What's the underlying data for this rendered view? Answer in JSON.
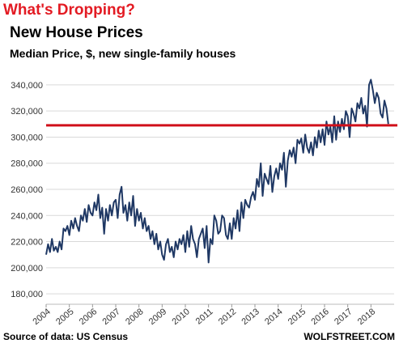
{
  "chart_data": {
    "type": "line",
    "title": "What's Dropping?",
    "subtitle": "New House Prices",
    "y_label": "Median Price, $, new single-family houses",
    "source": "Source of data: US Census",
    "credit": "WOLFSTREET.COM",
    "xlim": [
      2004,
      2019
    ],
    "xticks": [
      2004,
      2005,
      2006,
      2007,
      2008,
      2009,
      2010,
      2011,
      2012,
      2013,
      2014,
      2015,
      2016,
      2017,
      2018
    ],
    "ylim": [
      172000,
      348000
    ],
    "yticks": [
      {
        "value": 180000,
        "label": "180,000"
      },
      {
        "value": 200000,
        "label": "200,000"
      },
      {
        "value": 220000,
        "label": "220,000"
      },
      {
        "value": 240000,
        "label": "240,000"
      },
      {
        "value": 260000,
        "label": "260,000"
      },
      {
        "value": 280000,
        "label": "280,000"
      },
      {
        "value": 300000,
        "label": "300,000"
      },
      {
        "value": 320000,
        "label": "320,000"
      },
      {
        "value": 340000,
        "label": "340,000"
      }
    ],
    "grid": true,
    "reference_line": {
      "value": 309000,
      "color": "#d0101a"
    },
    "x": [
      2004,
      2004.083,
      2004.167,
      2004.25,
      2004.333,
      2004.417,
      2004.5,
      2004.583,
      2004.667,
      2004.75,
      2004.833,
      2004.917,
      2005,
      2005.083,
      2005.167,
      2005.25,
      2005.333,
      2005.417,
      2005.5,
      2005.583,
      2005.667,
      2005.75,
      2005.833,
      2005.917,
      2006,
      2006.083,
      2006.167,
      2006.25,
      2006.333,
      2006.417,
      2006.5,
      2006.583,
      2006.667,
      2006.75,
      2006.833,
      2006.917,
      2007,
      2007.083,
      2007.167,
      2007.25,
      2007.333,
      2007.417,
      2007.5,
      2007.583,
      2007.667,
      2007.75,
      2007.833,
      2007.917,
      2008,
      2008.083,
      2008.167,
      2008.25,
      2008.333,
      2008.417,
      2008.5,
      2008.583,
      2008.667,
      2008.75,
      2008.833,
      2008.917,
      2009,
      2009.083,
      2009.167,
      2009.25,
      2009.333,
      2009.417,
      2009.5,
      2009.583,
      2009.667,
      2009.75,
      2009.833,
      2009.917,
      2010,
      2010.083,
      2010.167,
      2010.25,
      2010.333,
      2010.417,
      2010.5,
      2010.583,
      2010.667,
      2010.75,
      2010.833,
      2010.917,
      2011,
      2011.083,
      2011.167,
      2011.25,
      2011.333,
      2011.417,
      2011.5,
      2011.583,
      2011.667,
      2011.75,
      2011.833,
      2011.917,
      2012,
      2012.083,
      2012.167,
      2012.25,
      2012.333,
      2012.417,
      2012.5,
      2012.583,
      2012.667,
      2012.75,
      2012.833,
      2012.917,
      2013,
      2013.083,
      2013.167,
      2013.25,
      2013.333,
      2013.417,
      2013.5,
      2013.583,
      2013.667,
      2013.75,
      2013.833,
      2013.917,
      2014,
      2014.083,
      2014.167,
      2014.25,
      2014.333,
      2014.417,
      2014.5,
      2014.583,
      2014.667,
      2014.75,
      2014.833,
      2014.917,
      2015,
      2015.083,
      2015.167,
      2015.25,
      2015.333,
      2015.417,
      2015.5,
      2015.583,
      2015.667,
      2015.75,
      2015.833,
      2015.917,
      2016,
      2016.083,
      2016.167,
      2016.25,
      2016.333,
      2016.417,
      2016.5,
      2016.583,
      2016.667,
      2016.75,
      2016.833,
      2016.917,
      2017,
      2017.083,
      2017.167,
      2017.25,
      2017.333,
      2017.417,
      2017.5,
      2017.583,
      2017.667,
      2017.75,
      2017.833,
      2017.917,
      2018,
      2018.083,
      2018.167,
      2018.25,
      2018.333,
      2018.417,
      2018.5,
      2018.583,
      2018.667,
      2018.75
    ],
    "series": [
      {
        "color": "#1f3864",
        "values": [
          210000,
          218000,
          212000,
          222000,
          213000,
          216000,
          212000,
          220000,
          214000,
          230000,
          228000,
          232000,
          225000,
          236000,
          230000,
          238000,
          232000,
          228000,
          240000,
          236000,
          245000,
          235000,
          248000,
          242000,
          240000,
          250000,
          244000,
          256000,
          238000,
          246000,
          226000,
          245000,
          236000,
          248000,
          240000,
          250000,
          252000,
          238000,
          256000,
          262000,
          242000,
          248000,
          236000,
          250000,
          240000,
          255000,
          232000,
          245000,
          236000,
          242000,
          230000,
          238000,
          228000,
          232000,
          222000,
          228000,
          218000,
          226000,
          214000,
          220000,
          210000,
          206000,
          218000,
          222000,
          212000,
          216000,
          208000,
          220000,
          214000,
          222000,
          218000,
          225000,
          212000,
          228000,
          216000,
          232000,
          222000,
          218000,
          208000,
          222000,
          226000,
          230000,
          215000,
          232000,
          204000,
          222000,
          218000,
          240000,
          236000,
          226000,
          228000,
          240000,
          238000,
          225000,
          222000,
          234000,
          222000,
          238000,
          230000,
          244000,
          228000,
          250000,
          238000,
          252000,
          248000,
          246000,
          254000,
          258000,
          252000,
          268000,
          262000,
          280000,
          255000,
          272000,
          268000,
          264000,
          278000,
          258000,
          270000,
          276000,
          268000,
          280000,
          275000,
          288000,
          262000,
          282000,
          290000,
          285000,
          292000,
          280000,
          298000,
          295000,
          299000,
          288000,
          302000,
          292000,
          288000,
          296000,
          286000,
          300000,
          292000,
          305000,
          296000,
          306000,
          294000,
          312000,
          302000,
          308000,
          296000,
          316000,
          298000,
          312000,
          304000,
          314000,
          306000,
          320000,
          316000,
          300000,
          322000,
          318000,
          312000,
          326000,
          322000,
          330000,
          318000,
          324000,
          308000,
          340000,
          344000,
          336000,
          326000,
          334000,
          330000,
          318000,
          315000,
          328000,
          322000,
          310000
        ]
      }
    ]
  }
}
